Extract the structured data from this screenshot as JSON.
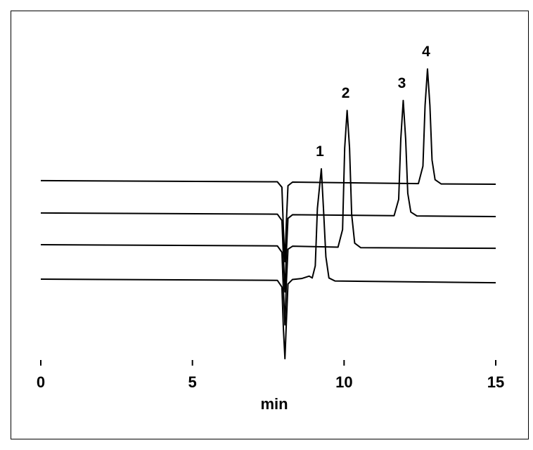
{
  "chart_data": {
    "type": "line",
    "x_label": "min",
    "xlim": [
      0,
      15
    ],
    "xticks": [
      0,
      5,
      10,
      15
    ],
    "ylim": [
      0,
      100
    ],
    "series": [
      {
        "color": "#000000",
        "x": [
          0,
          7.8,
          7.95,
          8.0,
          8.05,
          8.1,
          8.15,
          8.3,
          12.45,
          12.6,
          12.67,
          12.75,
          12.83,
          12.9,
          13.0,
          13.2,
          15
        ],
        "values": [
          61.2,
          60.8,
          59,
          45,
          34.4,
          48,
          59.5,
          60.7,
          60.2,
          66,
          86,
          98.1,
          86,
          68,
          61.5,
          60.1,
          60.0
        ]
      },
      {
        "color": "#000000",
        "x": [
          0,
          7.8,
          7.95,
          8.0,
          8.05,
          8.1,
          8.15,
          8.3,
          11.65,
          11.8,
          11.87,
          11.95,
          12.03,
          12.1,
          12.2,
          12.4,
          15
        ],
        "values": [
          50.5,
          50.1,
          48,
          36,
          24.4,
          38,
          48.7,
          49.9,
          49.6,
          55,
          75,
          87.7,
          75,
          57,
          50.8,
          49.5,
          49.3
        ]
      },
      {
        "color": "#000000",
        "x": [
          0,
          7.8,
          7.95,
          8.0,
          8.05,
          8.1,
          8.15,
          8.3,
          9.8,
          9.95,
          10.02,
          10.1,
          10.18,
          10.25,
          10.35,
          10.55,
          15
        ],
        "values": [
          40,
          39.6,
          37.5,
          25,
          13.5,
          28,
          38.5,
          39.5,
          39.2,
          45,
          72,
          84.4,
          72,
          50,
          40.5,
          39,
          38.8
        ]
      },
      {
        "color": "#000000",
        "x": [
          0,
          7.8,
          7.95,
          8.0,
          8.05,
          8.1,
          8.15,
          8.3,
          8.6,
          8.85,
          8.95,
          9.05,
          9.12,
          9.25,
          9.32,
          9.4,
          9.5,
          9.7,
          15
        ],
        "values": [
          28.6,
          28.2,
          26,
          12,
          2.3,
          15,
          27,
          28.5,
          28.8,
          29.6,
          29,
          33,
          52,
          65.1,
          52,
          36,
          29,
          28,
          27.4
        ]
      }
    ],
    "annotations": [
      {
        "text": "1",
        "x": 9.25
      },
      {
        "text": "2",
        "x": 10.1
      },
      {
        "text": "3",
        "x": 11.95
      },
      {
        "text": "4",
        "x": 12.75
      }
    ]
  }
}
